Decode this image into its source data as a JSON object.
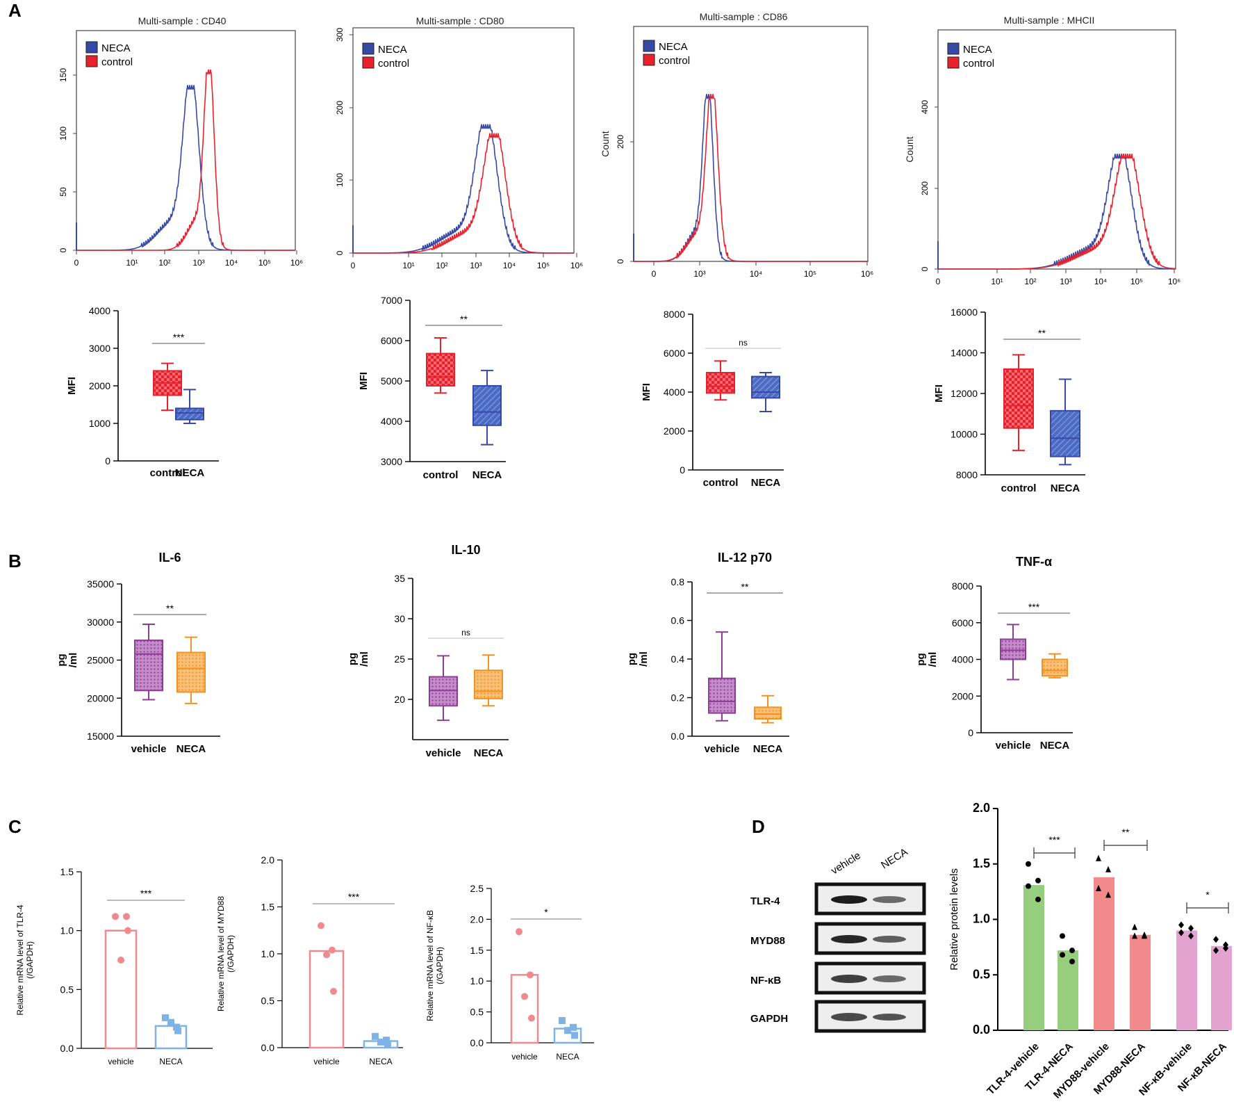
{
  "panel_labels": [
    "A",
    "B",
    "C",
    "D"
  ],
  "colors": {
    "neca_blue": "#3649a6",
    "control_red": "#e8212d",
    "vehicle_purple": "#8e3d96",
    "neca_orange": "#f3921e",
    "pink": "#f08a8f",
    "light_blue": "#7fb2e5",
    "green": "#95cf7e",
    "salmon": "#f28a8c",
    "mauve": "#e3a3d1"
  },
  "flow": [
    {
      "title": "Multi-sample : CD40",
      "legend": [
        "NECA",
        "control"
      ],
      "ylabel": "",
      "yticks": [
        "0",
        "50",
        "100",
        "150"
      ],
      "xticks": [
        "0",
        "10¹",
        "10²",
        "10³",
        "10⁴",
        "10⁵",
        "10⁶"
      ]
    },
    {
      "title": "Multi-sample : CD80",
      "legend": [
        "NECA",
        "control"
      ],
      "ylabel": "",
      "yticks": [
        "0",
        "100",
        "200",
        "300"
      ],
      "xticks": [
        "0",
        "10¹",
        "10²",
        "10³",
        "10⁴",
        "10⁵",
        "10⁶"
      ]
    },
    {
      "title": "Multi-sample : CD86",
      "legend": [
        "NECA",
        "control"
      ],
      "ylabel": "Count",
      "yticks": [
        "0",
        "200"
      ],
      "xticks": [
        "0",
        "10³",
        "10⁴",
        "10⁵",
        "10⁶"
      ]
    },
    {
      "title": "Multi-sample : MHCII",
      "legend": [
        "NECA",
        "control"
      ],
      "ylabel": "Count",
      "yticks": [
        "0",
        "200",
        "400"
      ],
      "xticks": [
        "0",
        "10¹",
        "10²",
        "10³",
        "10⁴",
        "10⁵",
        "10⁶"
      ]
    }
  ],
  "chart_data": [
    {
      "type": "box",
      "panel": "A",
      "title": "",
      "ylabel": "MFI",
      "ylim": [
        0,
        4000
      ],
      "yticks": [
        0,
        1000,
        2000,
        3000,
        4000
      ],
      "categories": [
        "control",
        "NECA"
      ],
      "significance": "***",
      "boxes": [
        {
          "min": 1350,
          "q1": 1750,
          "median": 2080,
          "q3": 2400,
          "max": 2600
        },
        {
          "min": 1000,
          "q1": 1100,
          "median": 1280,
          "q3": 1400,
          "max": 1900
        }
      ]
    },
    {
      "type": "box",
      "panel": "A",
      "title": "",
      "ylabel": "MFI",
      "ylim": [
        3000,
        7000
      ],
      "yticks": [
        3000,
        4000,
        5000,
        6000,
        7000
      ],
      "categories": [
        "control",
        "NECA"
      ],
      "significance": "**",
      "boxes": [
        {
          "min": 4700,
          "q1": 4880,
          "median": 5100,
          "q3": 5680,
          "max": 6070
        },
        {
          "min": 3420,
          "q1": 3900,
          "median": 4230,
          "q3": 4880,
          "max": 5260
        }
      ]
    },
    {
      "type": "box",
      "panel": "A",
      "title": "",
      "ylabel": "MFI",
      "ylim": [
        0,
        8000
      ],
      "yticks": [
        0,
        2000,
        4000,
        6000,
        8000
      ],
      "categories": [
        "control",
        "NECA"
      ],
      "significance": "ns",
      "boxes": [
        {
          "min": 3600,
          "q1": 3950,
          "median": 4300,
          "q3": 5000,
          "max": 5600
        },
        {
          "min": 3000,
          "q1": 3700,
          "median": 4000,
          "q3": 4800,
          "max": 5000
        }
      ]
    },
    {
      "type": "box",
      "panel": "A",
      "title": "",
      "ylabel": "MFI",
      "ylim": [
        8000,
        16000
      ],
      "yticks": [
        8000,
        10000,
        12000,
        14000,
        16000
      ],
      "categories": [
        "control",
        "NECA"
      ],
      "significance": "**",
      "boxes": [
        {
          "min": 9200,
          "q1": 10300,
          "median": 11400,
          "q3": 13200,
          "max": 13900
        },
        {
          "min": 8500,
          "q1": 8900,
          "median": 9800,
          "q3": 11150,
          "max": 12700
        }
      ]
    },
    {
      "type": "box",
      "panel": "B",
      "title": "IL-6",
      "ylabel": "pg\n/ml",
      "ylim": [
        15000,
        35000
      ],
      "yticks": [
        15000,
        20000,
        25000,
        30000,
        35000
      ],
      "categories": [
        "vehicle",
        "NECA"
      ],
      "significance": "**",
      "boxes": [
        {
          "min": 19800,
          "q1": 21000,
          "median": 25800,
          "q3": 27600,
          "max": 29700
        },
        {
          "min": 19300,
          "q1": 20800,
          "median": 23900,
          "q3": 26000,
          "max": 28000
        }
      ]
    },
    {
      "type": "box",
      "panel": "B",
      "title": "IL-10",
      "ylabel": "pg\n/ml",
      "ylim": [
        15,
        35
      ],
      "yticks": [
        20,
        25,
        30,
        35
      ],
      "categories": [
        "vehicle",
        "NECA"
      ],
      "significance": "ns",
      "boxes": [
        {
          "min": 17.4,
          "q1": 19.2,
          "median": 21.1,
          "q3": 22.8,
          "max": 25.4
        },
        {
          "min": 19.2,
          "q1": 20.1,
          "median": 21.0,
          "q3": 23.6,
          "max": 25.5
        }
      ]
    },
    {
      "type": "box",
      "panel": "B",
      "title": "IL-12 p70",
      "ylabel": "pg\n/ml",
      "ylim": [
        0,
        0.8
      ],
      "yticks": [
        0.0,
        0.2,
        0.4,
        0.6,
        0.8
      ],
      "categories": [
        "vehicle",
        "NECA"
      ],
      "significance": "**",
      "boxes": [
        {
          "min": 0.08,
          "q1": 0.12,
          "median": 0.18,
          "q3": 0.3,
          "max": 0.54
        },
        {
          "min": 0.07,
          "q1": 0.09,
          "median": 0.115,
          "q3": 0.15,
          "max": 0.21
        }
      ]
    },
    {
      "type": "box",
      "panel": "B",
      "title": "TNF-α",
      "ylabel": "pg\n/ml",
      "ylim": [
        0,
        8000
      ],
      "yticks": [
        0,
        2000,
        4000,
        6000,
        8000
      ],
      "categories": [
        "vehicle",
        "NECA"
      ],
      "significance": "***",
      "boxes": [
        {
          "min": 2900,
          "q1": 4000,
          "median": 4500,
          "q3": 5100,
          "max": 5900
        },
        {
          "min": 3000,
          "q1": 3100,
          "median": 3400,
          "q3": 4000,
          "max": 4300
        }
      ]
    },
    {
      "type": "bar",
      "panel": "C",
      "title": "",
      "ylabel": "Relative mRNA level of TLR-4\n(/GAPDH)",
      "ylim": [
        0,
        1.5
      ],
      "yticks": [
        0.0,
        0.5,
        1.0,
        1.5
      ],
      "categories": [
        "vehicle",
        "NECA"
      ],
      "significance": "***",
      "values": [
        1.0,
        0.19
      ],
      "points": [
        [
          1.12,
          1.12,
          0.75,
          1.0
        ],
        [
          0.26,
          0.18,
          0.22,
          0.15
        ]
      ]
    },
    {
      "type": "bar",
      "panel": "C",
      "title": "",
      "ylabel": "Relative mRNA level of MYD88\n(/GAPDH)",
      "ylim": [
        0,
        2.0
      ],
      "yticks": [
        0.0,
        0.5,
        1.0,
        1.5,
        2.0
      ],
      "categories": [
        "vehicle",
        "NECA"
      ],
      "significance": "***",
      "values": [
        1.03,
        0.07
      ],
      "points": [
        [
          1.3,
          1.04,
          0.99,
          0.6
        ],
        [
          0.12,
          0.08,
          0.06,
          0.04
        ]
      ]
    },
    {
      "type": "bar",
      "panel": "C",
      "title": "",
      "ylabel": "Relative mRNA level of NF-κB\n(/GAPDH)",
      "ylim": [
        0,
        2.5
      ],
      "yticks": [
        0.0,
        0.5,
        1.0,
        1.5,
        2.0,
        2.5
      ],
      "categories": [
        "vehicle",
        "NECA"
      ],
      "significance": "*",
      "values": [
        1.1,
        0.23
      ],
      "points": [
        [
          1.8,
          1.1,
          0.75,
          0.4
        ],
        [
          0.36,
          0.25,
          0.2,
          0.12
        ]
      ]
    },
    {
      "type": "bar",
      "panel": "D",
      "title": "",
      "ylabel": "Relative protein levels",
      "ylim": [
        0,
        2.0
      ],
      "yticks": [
        0.0,
        0.5,
        1.0,
        1.5,
        2.0
      ],
      "categories": [
        "TLR-4-vehicle",
        "TLR-4-NECA",
        "MYD88-vehicle",
        "MYD88-NECA",
        "NF-κB-vehicle",
        "NF-κB-NECA"
      ],
      "values": [
        1.31,
        0.72,
        1.38,
        0.86,
        0.9,
        0.76
      ],
      "points": [
        [
          1.5,
          1.35,
          1.3,
          1.18
        ],
        [
          0.85,
          0.72,
          0.68,
          0.62
        ],
        [
          1.55,
          1.45,
          1.28,
          1.22
        ],
        [
          0.93,
          0.86,
          0.85,
          0.85
        ],
        [
          0.95,
          0.92,
          0.88,
          0.85
        ],
        [
          0.82,
          0.77,
          0.72,
          0.74
        ]
      ],
      "significance": [
        {
          "pair": [
            0,
            1
          ],
          "label": "***"
        },
        {
          "pair": [
            2,
            3
          ],
          "label": "**"
        },
        {
          "pair": [
            4,
            5
          ],
          "label": "*"
        }
      ]
    }
  ],
  "western": {
    "lanes": [
      "vehicle",
      "NECA"
    ],
    "rows": [
      "TLR-4",
      "MYD88",
      "NF-κB",
      "GAPDH"
    ]
  }
}
